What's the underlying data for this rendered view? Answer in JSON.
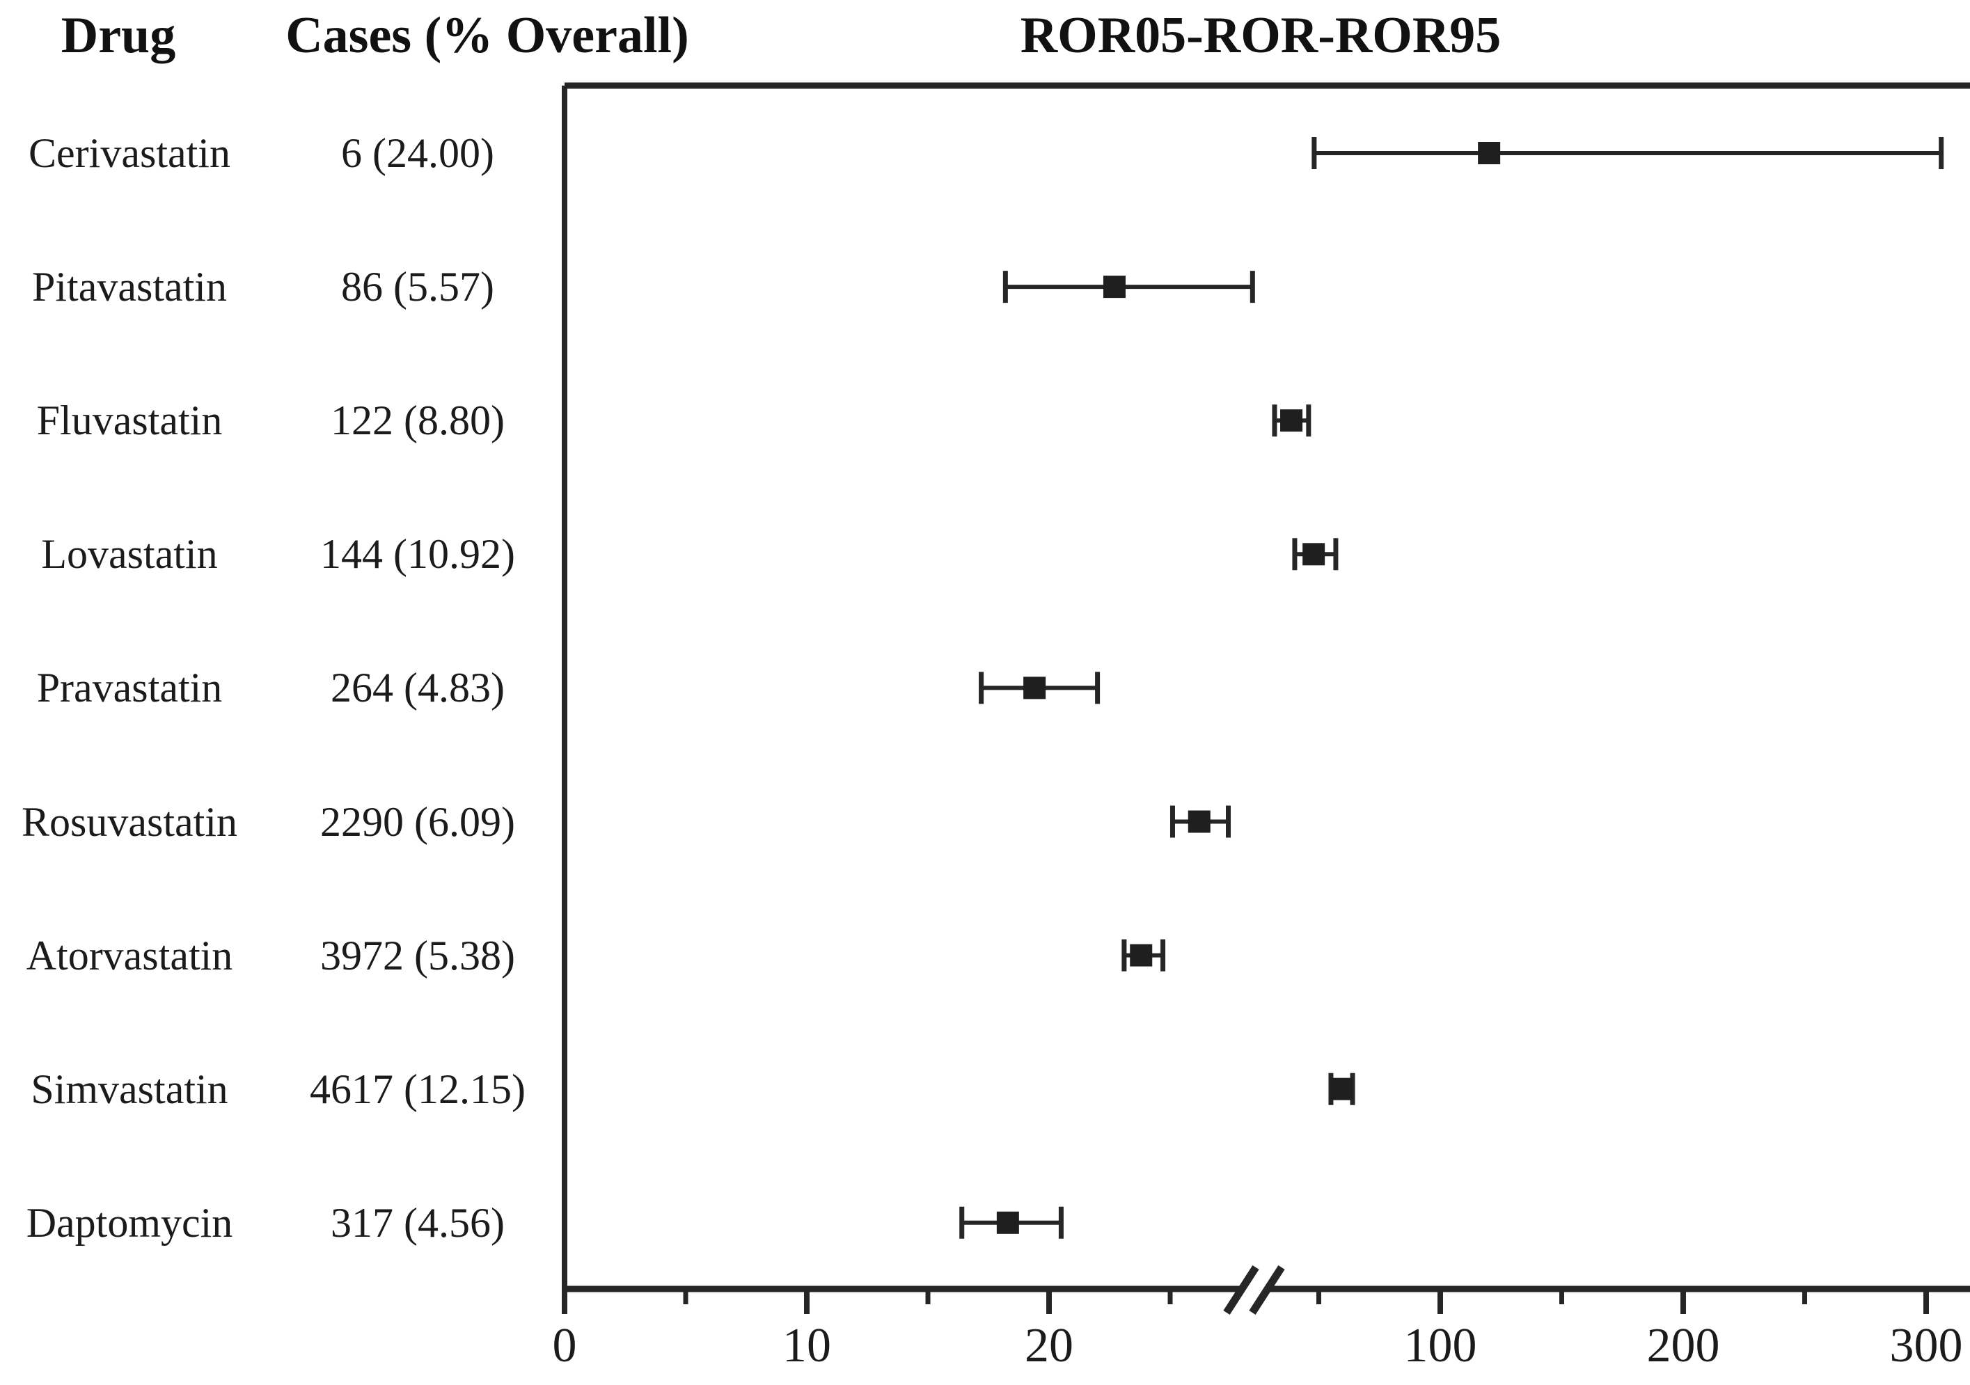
{
  "figure": {
    "headers": {
      "drug": "Drug",
      "cases": "Cases (% Overall)",
      "ror": "ROR05-ROR-ROR95"
    }
  },
  "chart_data": {
    "type": "scatter",
    "variant": "forest-plot",
    "title": "ROR05-ROR-ROR95",
    "columns": [
      "Drug",
      "Cases (% Overall)",
      "ROR05-ROR-ROR95"
    ],
    "rows": [
      {
        "drug": "Cerivastatin",
        "cases": "6 (24.00)",
        "ror05": 48.1,
        "ror": 120.1,
        "ror95": 306.2
      },
      {
        "drug": "Pitavastatin",
        "cases": "86 (5.57)",
        "ror05": 18.2,
        "ror": 22.7,
        "ror95": 28.4
      },
      {
        "drug": "Fluvastatin",
        "cases": "122 (8.80)",
        "ror05": 31.8,
        "ror": 38.7,
        "ror95": 45.8
      },
      {
        "drug": "Lovastatin",
        "cases": "144 (10.92)",
        "ror05": 40.1,
        "ror": 47.9,
        "ror95": 57.0
      },
      {
        "drug": "Pravastatin",
        "cases": "264 (4.83)",
        "ror05": 17.2,
        "ror": 19.4,
        "ror95": 22.0
      },
      {
        "drug": "Rosuvastatin",
        "cases": "2290 (6.09)",
        "ror05": 25.1,
        "ror": 26.2,
        "ror95": 27.4
      },
      {
        "drug": "Atorvastatin",
        "cases": "3972 (5.38)",
        "ror05": 23.1,
        "ror": 23.8,
        "ror95": 24.7
      },
      {
        "drug": "Simvastatin",
        "cases": "4617 (12.15)",
        "ror05": 55.0,
        "ror": 59.3,
        "ror95": 63.9
      },
      {
        "drug": "Daptomycin",
        "cases": "317 (4.56)",
        "ror05": 16.4,
        "ror": 18.3,
        "ror95": 20.5
      }
    ],
    "x_axis": {
      "axis_break": true,
      "segments": [
        {
          "range": [
            0,
            25
          ],
          "minor_ticks": [
            5,
            15,
            25
          ],
          "labeled_ticks": [
            0,
            10,
            20
          ]
        },
        {
          "range": [
            50,
            300
          ],
          "minor_ticks": [
            50,
            150,
            250
          ],
          "labeled_ticks": [
            100,
            200,
            300
          ]
        }
      ],
      "tick_labels": [
        "0",
        "10",
        "20",
        "100",
        "200",
        "300"
      ],
      "grid": false
    },
    "legend": null,
    "marker_color": "#1f1f1f",
    "line_color": "#262626",
    "background_color": "#ffffff"
  }
}
